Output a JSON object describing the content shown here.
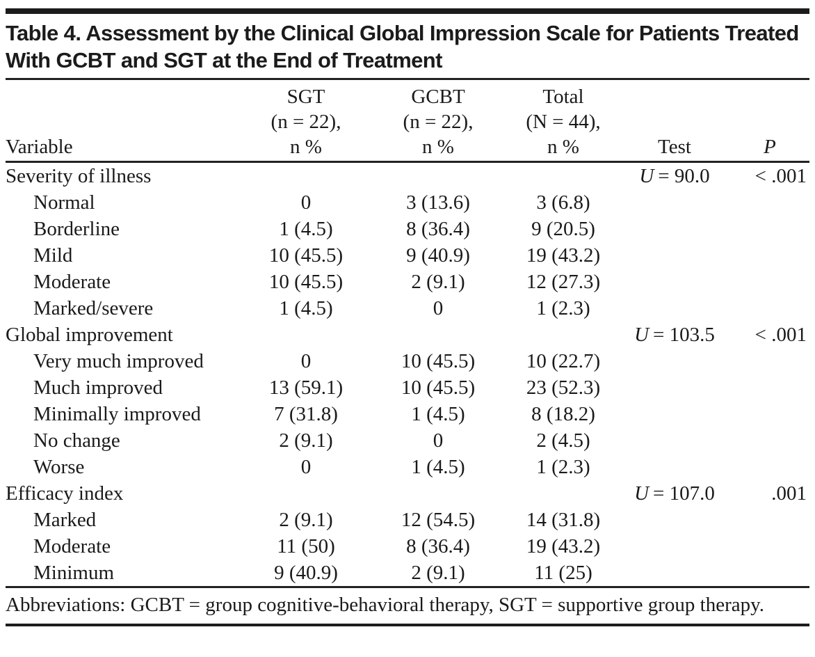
{
  "title": "Table 4. Assessment by the Clinical Global Impression Scale for Patients Treated With GCBT and SGT at the End of Treatment",
  "columns": {
    "variable": "Variable",
    "sgt": [
      "SGT",
      "(n = 22),",
      "n %"
    ],
    "gcbt": [
      "GCBT",
      "(n = 22),",
      "n %"
    ],
    "total": [
      "Total",
      "(N = 44),",
      "n %"
    ],
    "test": "Test",
    "p": "P"
  },
  "rows": [
    {
      "label": "Severity of illness",
      "indent": false,
      "sgt": "",
      "gcbt": "",
      "total": "",
      "test_var": "U",
      "test_val": "= 90.0",
      "p": "< .001"
    },
    {
      "label": "Normal",
      "indent": true,
      "sgt": "0",
      "gcbt": "3 (13.6)",
      "total": "3 (6.8)",
      "test_var": "",
      "test_val": "",
      "p": ""
    },
    {
      "label": "Borderline",
      "indent": true,
      "sgt": "1 (4.5)",
      "gcbt": "8 (36.4)",
      "total": "9 (20.5)",
      "test_var": "",
      "test_val": "",
      "p": ""
    },
    {
      "label": "Mild",
      "indent": true,
      "sgt": "10 (45.5)",
      "gcbt": "9 (40.9)",
      "total": "19 (43.2)",
      "test_var": "",
      "test_val": "",
      "p": ""
    },
    {
      "label": "Moderate",
      "indent": true,
      "sgt": "10 (45.5)",
      "gcbt": "2 (9.1)",
      "total": "12 (27.3)",
      "test_var": "",
      "test_val": "",
      "p": ""
    },
    {
      "label": "Marked/severe",
      "indent": true,
      "sgt": "1 (4.5)",
      "gcbt": "0",
      "total": "1 (2.3)",
      "test_var": "",
      "test_val": "",
      "p": ""
    },
    {
      "label": "Global improvement",
      "indent": false,
      "sgt": "",
      "gcbt": "",
      "total": "",
      "test_var": "U",
      "test_val": "= 103.5",
      "p": "< .001"
    },
    {
      "label": "Very much improved",
      "indent": true,
      "sgt": "0",
      "gcbt": "10 (45.5)",
      "total": "10 (22.7)",
      "test_var": "",
      "test_val": "",
      "p": ""
    },
    {
      "label": "Much improved",
      "indent": true,
      "sgt": "13 (59.1)",
      "gcbt": "10 (45.5)",
      "total": "23 (52.3)",
      "test_var": "",
      "test_val": "",
      "p": ""
    },
    {
      "label": "Minimally improved",
      "indent": true,
      "sgt": "7 (31.8)",
      "gcbt": "1 (4.5)",
      "total": "8 (18.2)",
      "test_var": "",
      "test_val": "",
      "p": ""
    },
    {
      "label": "No change",
      "indent": true,
      "sgt": "2 (9.1)",
      "gcbt": "0",
      "total": "2 (4.5)",
      "test_var": "",
      "test_val": "",
      "p": ""
    },
    {
      "label": "Worse",
      "indent": true,
      "sgt": "0",
      "gcbt": "1 (4.5)",
      "total": "1 (2.3)",
      "test_var": "",
      "test_val": "",
      "p": ""
    },
    {
      "label": "Efficacy index",
      "indent": false,
      "sgt": "",
      "gcbt": "",
      "total": "",
      "test_var": "U",
      "test_val": "= 107.0",
      "p": ".001"
    },
    {
      "label": "Marked",
      "indent": true,
      "sgt": "2 (9.1)",
      "gcbt": "12 (54.5)",
      "total": "14 (31.8)",
      "test_var": "",
      "test_val": "",
      "p": ""
    },
    {
      "label": "Moderate",
      "indent": true,
      "sgt": "11 (50)",
      "gcbt": "8 (36.4)",
      "total": "19 (43.2)",
      "test_var": "",
      "test_val": "",
      "p": ""
    },
    {
      "label": "Minimum",
      "indent": true,
      "sgt": "9 (40.9)",
      "gcbt": "2 (9.1)",
      "total": "11 (25)",
      "test_var": "",
      "test_val": "",
      "p": ""
    }
  ],
  "footnote": "Abbreviations: GCBT = group cognitive-behavioral therapy, SGT = supportive group therapy."
}
